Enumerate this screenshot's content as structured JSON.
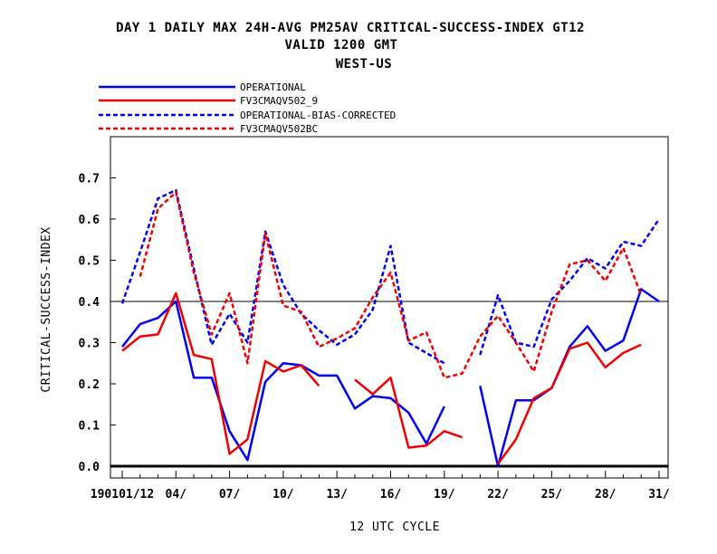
{
  "chart_data": {
    "type": "line",
    "title": [
      "DAY 1 DAILY MAX   24H-AVG PM25AV CRITICAL-SUCCESS-INDEX GT12",
      "VALID 1200 GMT",
      "WEST-US"
    ],
    "xlabel": "12 UTC CYCLE",
    "ylabel": "CRITICAL-SUCCESS-INDEX",
    "x": [
      1,
      2,
      3,
      4,
      5,
      6,
      7,
      8,
      9,
      10,
      11,
      12,
      13,
      14,
      15,
      16,
      17,
      18,
      19,
      20,
      21,
      22,
      23,
      24,
      25,
      26,
      27,
      28,
      29,
      30,
      31
    ],
    "xtick_values": [
      1,
      4,
      7,
      10,
      13,
      16,
      19,
      22,
      25,
      28,
      31
    ],
    "xtick_labels": [
      "190101/12",
      "04/",
      "07/",
      "10/",
      "13/",
      "16/",
      "19/",
      "22/",
      "25/",
      "28/",
      "31/"
    ],
    "yticks": [
      0.0,
      0.1,
      0.2,
      0.3,
      0.4,
      0.5,
      0.6,
      0.7
    ],
    "ytick_labels": [
      "0.0",
      "0.1",
      "0.2",
      "0.3",
      "0.4",
      "0.5",
      "0.6",
      "0.7"
    ],
    "xlim": [
      1,
      31
    ],
    "ylim": [
      0,
      0.8
    ],
    "reference_line": 0.4,
    "legend_position": "top-left, above plot",
    "series": [
      {
        "name": "OPERATIONAL",
        "color": "#0000ee",
        "dash": "solid",
        "values": [
          0.29,
          0.345,
          0.36,
          0.4,
          0.215,
          0.215,
          0.085,
          0.015,
          0.205,
          0.25,
          0.245,
          0.22,
          0.22,
          0.14,
          0.17,
          0.165,
          0.13,
          0.055,
          0.145,
          null,
          0.195,
          0.0,
          0.16,
          0.16,
          0.19,
          0.29,
          0.34,
          0.28,
          0.305,
          0.43,
          0.4
        ]
      },
      {
        "name": "FV3CMAQV502_9",
        "color": "#ee0000",
        "dash": "solid",
        "values": [
          0.28,
          0.315,
          0.32,
          0.42,
          0.27,
          0.26,
          0.03,
          0.065,
          0.255,
          0.23,
          0.245,
          0.195,
          null,
          0.21,
          0.175,
          0.215,
          0.045,
          0.05,
          0.085,
          0.07,
          null,
          0.005,
          0.065,
          0.165,
          0.19,
          0.285,
          0.3,
          0.24,
          0.275,
          0.295,
          null
        ]
      },
      {
        "name": "OPERATIONAL-BIAS-CORRECTED",
        "color": "#0000ee",
        "dash": "dashed",
        "values": [
          0.395,
          0.52,
          0.65,
          0.67,
          0.48,
          0.295,
          0.37,
          0.3,
          0.57,
          0.44,
          0.37,
          0.33,
          0.295,
          0.32,
          0.38,
          0.535,
          0.3,
          0.275,
          0.25,
          null,
          0.27,
          0.415,
          0.3,
          0.29,
          0.405,
          0.45,
          0.505,
          0.48,
          0.545,
          0.535,
          0.6
        ]
      },
      {
        "name": "FV3CMAQV502BC",
        "color": "#ee0000",
        "dash": "dashed",
        "values": [
          null,
          0.46,
          0.625,
          0.665,
          0.47,
          0.32,
          0.42,
          0.25,
          0.565,
          0.39,
          0.375,
          0.29,
          0.31,
          0.335,
          0.41,
          0.47,
          0.305,
          0.325,
          0.215,
          0.225,
          0.315,
          0.365,
          0.3,
          0.23,
          0.375,
          0.49,
          0.5,
          0.45,
          0.53,
          0.415,
          null
        ]
      }
    ]
  }
}
